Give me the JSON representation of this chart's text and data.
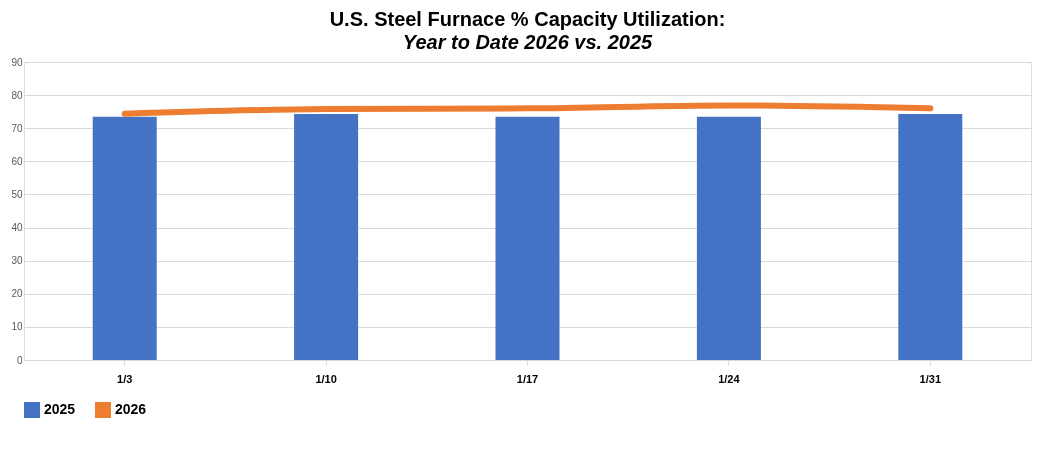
{
  "chart_data": {
    "type": "bar",
    "title": "U.S. Steel Furnace % Capacity Utilization:",
    "subtitle": "Year to Date 2026 vs. 2025",
    "categories": [
      "1/3",
      "1/10",
      "1/17",
      "1/24",
      "1/31"
    ],
    "series": [
      {
        "name": "2025",
        "color": "#4472c4",
        "values": [
          73.5,
          74.3,
          73.5,
          73.5,
          74.3
        ]
      },
      {
        "name": "2026",
        "type": "line",
        "color": "#ed7d31",
        "values": [
          74.4,
          75.8,
          76.0,
          76.9,
          76.0
        ]
      }
    ],
    "ylim": [
      0,
      90
    ],
    "yticks": [
      0,
      10,
      20,
      30,
      40,
      50,
      60,
      70,
      80,
      90
    ],
    "grid": "y",
    "legend": "bottom"
  }
}
